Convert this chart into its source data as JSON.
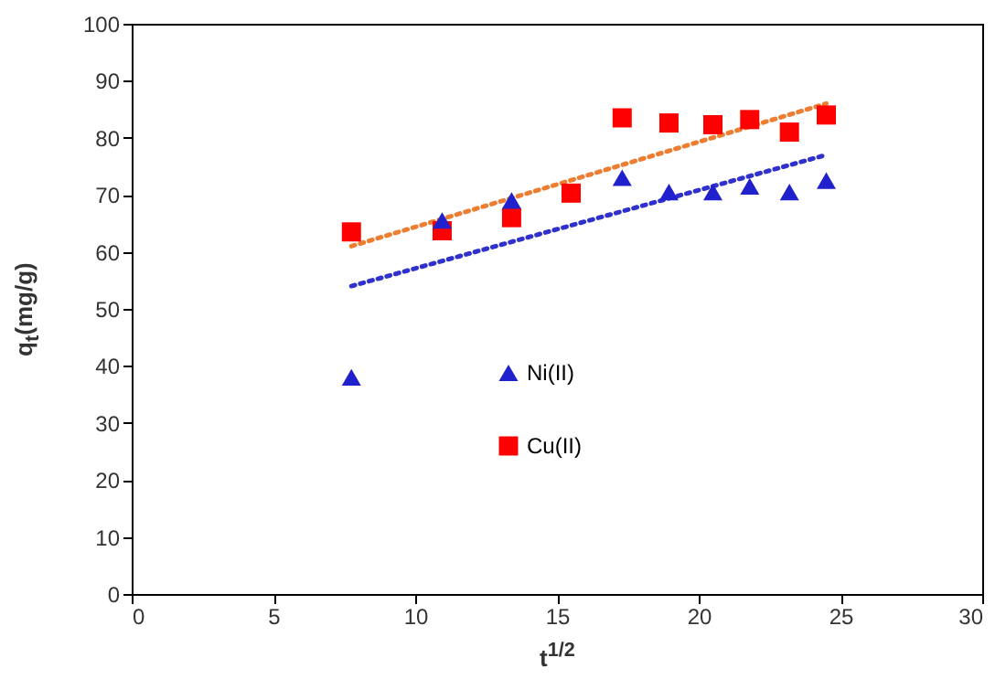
{
  "chart_data": {
    "type": "scatter",
    "xlabel": "t$^{1/2}$",
    "ylabel": "q$_{t}$(mg/g)",
    "xlim": [
      0,
      30
    ],
    "xticks": [
      0,
      5,
      10,
      15,
      20,
      25,
      30
    ],
    "ylim": [
      0,
      100
    ],
    "yticks": [
      0,
      10,
      20,
      30,
      40,
      50,
      60,
      70,
      80,
      90,
      100
    ],
    "grid": false,
    "legend": "bottom",
    "series": [
      {
        "name": "Ni(II)",
        "color": "#2020cc",
        "marker": "triangle",
        "x": [
          7.75,
          10.95,
          13.4,
          17.3,
          18.95,
          20.5,
          21.8,
          23.2,
          24.5
        ],
        "values": [
          38,
          65.5,
          69,
          73,
          70.5,
          70.5,
          71.5,
          70.5,
          72.5
        ]
      },
      {
        "name": "Cu(II)",
        "color": "#ff0000",
        "marker": "square",
        "x": [
          7.75,
          10.95,
          13.4,
          15.5,
          17.3,
          18.95,
          20.5,
          21.8,
          23.2,
          24.5
        ],
        "values": [
          63.5,
          63.7,
          66,
          70.3,
          83.5,
          82.6,
          82.3,
          83.2,
          81,
          84
        ]
      },
      {
        "type": "line",
        "color": "#ed7d31",
        "marker": "none",
        "line_style": "dotted",
        "x": [
          7.75,
          24.5
        ],
        "values": [
          61,
          86
        ]
      },
      {
        "type": "line",
        "color": "#3030cc",
        "marker": "none",
        "line_style": "dotted",
        "x": [
          7.75,
          24.5
        ],
        "values": [
          54,
          77
        ]
      }
    ]
  }
}
